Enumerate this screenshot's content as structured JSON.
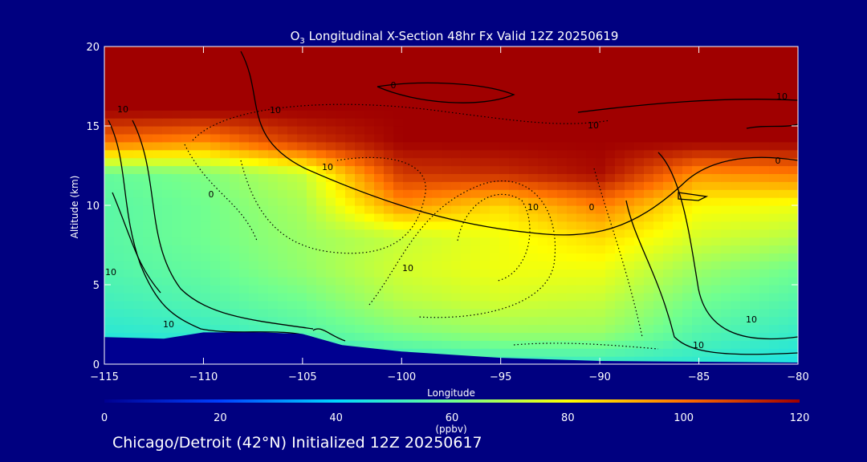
{
  "chart_data": {
    "type": "heatmap",
    "title": "O3 Longitudinal X-Section 48hr  Fx Valid 12Z 20250619",
    "title_parts": {
      "pre": "O",
      "sub": "3",
      "post": " Longitudinal X-Section 48hr  Fx Valid 12Z 20250619"
    },
    "xlabel": "Longitude",
    "ylabel": "Altitude (km)",
    "xlim": [
      -115,
      -80
    ],
    "ylim": [
      0,
      20
    ],
    "xticks": [
      -115,
      -110,
      -105,
      -100,
      -95,
      -90,
      -85,
      -80
    ],
    "xtick_labels": [
      "−115",
      "−110",
      "−105",
      "−100",
      "−95",
      "−90",
      "−85",
      "−80"
    ],
    "yticks": [
      0,
      5,
      10,
      15,
      20
    ],
    "ytick_labels": [
      "0",
      "5",
      "10",
      "15",
      "20"
    ],
    "colorbar": {
      "min": 0,
      "max": 120,
      "ticks": [
        0,
        20,
        40,
        60,
        80,
        100,
        120
      ],
      "tick_labels": [
        "0",
        "20",
        "40",
        "60",
        "80",
        "100",
        "120"
      ],
      "unit": "(ppbv)",
      "stops": [
        "#000090",
        "#0040ff",
        "#00d8ff",
        "#70ff90",
        "#ffff00",
        "#ff7000",
        "#a00000"
      ]
    },
    "field_ppbv": {
      "description_levels_km": [
        0,
        2,
        4,
        6,
        8,
        10,
        12,
        14,
        16,
        18,
        20
      ],
      "longitudes": [
        -115,
        -110,
        -105,
        -100,
        -95,
        -90,
        -85,
        -80
      ],
      "rows": [
        [
          40,
          42,
          45,
          48,
          50,
          50,
          48,
          45
        ],
        [
          48,
          50,
          55,
          62,
          66,
          66,
          55,
          50
        ],
        [
          52,
          55,
          60,
          70,
          74,
          72,
          60,
          55
        ],
        [
          55,
          58,
          65,
          74,
          78,
          78,
          66,
          60
        ],
        [
          56,
          60,
          66,
          72,
          78,
          85,
          74,
          70
        ],
        [
          56,
          60,
          68,
          95,
          85,
          98,
          80,
          78
        ],
        [
          58,
          62,
          72,
          110,
          112,
          118,
          95,
          98
        ],
        [
          100,
          95,
          110,
          120,
          120,
          120,
          120,
          120
        ],
        [
          120,
          120,
          120,
          120,
          120,
          120,
          120,
          120
        ],
        [
          120,
          120,
          120,
          120,
          120,
          120,
          120,
          120
        ],
        [
          120,
          120,
          120,
          120,
          120,
          120,
          120,
          120
        ]
      ]
    },
    "terrain_km": {
      "lon": [
        -115,
        -112,
        -110,
        -107,
        -105,
        -103,
        -100,
        -95,
        -90,
        -85,
        -80
      ],
      "alt": [
        1.7,
        1.6,
        2.0,
        2.0,
        1.9,
        1.2,
        0.8,
        0.4,
        0.2,
        0.15,
        0.1
      ]
    },
    "contour_labels": [
      "10",
      "0",
      "10",
      "10",
      "0",
      "10",
      "10",
      "10",
      "10",
      "0",
      "10",
      "10",
      "0",
      "10",
      "10"
    ],
    "footer": "Chicago/Detroit (42°N) Initialized 12Z 20250617"
  }
}
